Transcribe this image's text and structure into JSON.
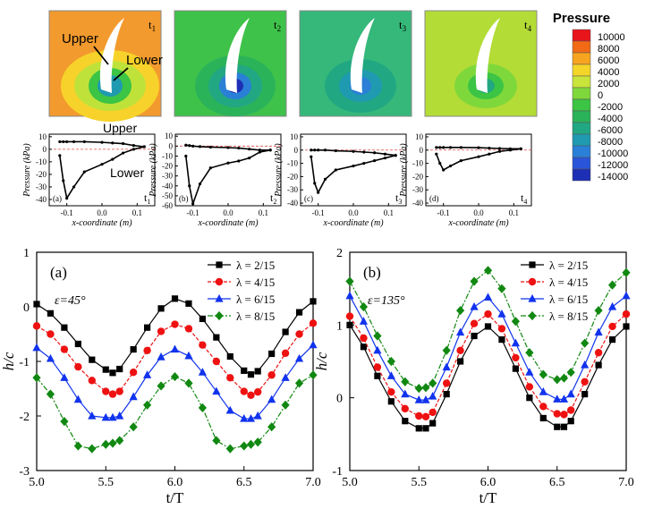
{
  "colorbar": {
    "title": "Pressure",
    "ticks": [
      "10000",
      "8000",
      "6000",
      "4000",
      "2000",
      "0",
      "-2000",
      "-4000",
      "-6000",
      "-8000",
      "-10000",
      "-12000",
      "-14000"
    ],
    "colors": [
      "#e8151b",
      "#f26a15",
      "#f7a520",
      "#f5d528",
      "#c9e43a",
      "#7fd83b",
      "#3cc444",
      "#2bb35a",
      "#22a783",
      "#1f9ab0",
      "#2a7fd6",
      "#2a55d8",
      "#1d2fb4"
    ]
  },
  "contours": [
    {
      "time_label": "t",
      "time_sub": "1",
      "bg": "#f29a2e",
      "annotations": [
        "Upper",
        "Lower"
      ]
    },
    {
      "time_label": "t",
      "time_sub": "2",
      "bg": "#3fc24a",
      "annotations": []
    },
    {
      "time_label": "t",
      "time_sub": "3",
      "bg": "#35b87a",
      "annotations": []
    },
    {
      "time_label": "t",
      "time_sub": "4",
      "bg": "#b3dc36",
      "annotations": []
    }
  ],
  "pressure_panels": [
    {
      "letter": "(a)",
      "time_label": "t",
      "time_sub": "1",
      "xlabel": "x-coordinate (m)",
      "ylabel": "Pressure (kPa)",
      "x_ticks": [
        "-0.1",
        "0.0",
        "0.1"
      ],
      "y_ticks": [
        "10",
        "0",
        "-10",
        "-20",
        "-30",
        "-40"
      ],
      "ylim": [
        -45,
        12
      ],
      "xlim": [
        -0.15,
        0.15
      ],
      "labels": [
        "Upper",
        "Lower"
      ],
      "chart_data": {
        "type": "scatter",
        "x": [
          -0.12,
          -0.11,
          -0.1,
          -0.08,
          -0.05,
          0,
          0.03,
          0.06,
          0.09,
          0.12
        ],
        "upper": [
          6,
          6,
          6,
          6,
          6,
          5.5,
          5,
          4.5,
          3,
          2
        ],
        "lower": [
          -5,
          -25,
          -39,
          -30,
          -18,
          -12,
          -8,
          -3,
          0,
          2
        ]
      }
    },
    {
      "letter": "(b)",
      "time_label": "t",
      "time_sub": "2",
      "xlabel": "x-coordinate (m)",
      "ylabel": "Pressure (kPa)",
      "x_ticks": [
        "-0.1",
        "0.0",
        "0.1"
      ],
      "y_ticks": [
        "10",
        "0",
        "-10",
        "-20",
        "-30",
        "-40",
        "-50",
        "-60"
      ],
      "ylim": [
        -60,
        12
      ],
      "xlim": [
        -0.15,
        0.15
      ],
      "labels": [],
      "chart_data": {
        "type": "scatter",
        "x": [
          -0.12,
          -0.11,
          -0.1,
          -0.08,
          -0.05,
          0,
          0.03,
          0.06,
          0.09,
          0.12
        ],
        "upper": [
          1,
          0.5,
          0,
          -0.5,
          -1,
          -1.5,
          -2,
          -3,
          -4,
          -4
        ],
        "lower": [
          -10,
          -40,
          -58,
          -38,
          -22,
          -17,
          -15,
          -12,
          -6,
          -4
        ]
      }
    },
    {
      "letter": "(c)",
      "time_label": "t",
      "time_sub": "3",
      "xlabel": "x-coordinate (m)",
      "ylabel": "Pressure (kPa)",
      "x_ticks": [
        "-0.1",
        "0.0",
        "0.1"
      ],
      "y_ticks": [
        "10",
        "0",
        "-10",
        "-20",
        "-30",
        "-40"
      ],
      "ylim": [
        -42,
        12
      ],
      "xlim": [
        -0.15,
        0.15
      ],
      "labels": [],
      "chart_data": {
        "type": "scatter",
        "x": [
          -0.12,
          -0.11,
          -0.1,
          -0.08,
          -0.05,
          0,
          0.03,
          0.06,
          0.09,
          0.12
        ],
        "upper": [
          0,
          0,
          0,
          0,
          -0.5,
          -1,
          -1.5,
          -2,
          -3,
          -4
        ],
        "lower": [
          -5,
          -25,
          -32,
          -22,
          -15,
          -12,
          -10,
          -8,
          -6,
          -4
        ]
      }
    },
    {
      "letter": "(d)",
      "time_label": "t",
      "time_sub": "4",
      "xlabel": "x-coordinate (m)",
      "ylabel": "Pressure (kPa)",
      "x_ticks": [
        "-0.1",
        "0.0",
        "0.1"
      ],
      "y_ticks": [
        "10",
        "0",
        "-10",
        "-20",
        "-30",
        "-40"
      ],
      "ylim": [
        -42,
        12
      ],
      "xlim": [
        -0.15,
        0.15
      ],
      "labels": [],
      "chart_data": {
        "type": "scatter",
        "x": [
          -0.12,
          -0.11,
          -0.1,
          -0.08,
          -0.05,
          0,
          0.03,
          0.06,
          0.09,
          0.12
        ],
        "upper": [
          2,
          2,
          2,
          2,
          2,
          1.8,
          1.5,
          1.2,
          1,
          1
        ],
        "lower": [
          -3,
          -10,
          -15,
          -12,
          -8,
          -5,
          -3,
          -1,
          0,
          1
        ]
      }
    }
  ],
  "hc_charts": [
    {
      "letter": "(a)",
      "annotation": "ε=45°",
      "xlabel": "t/T",
      "ylabel": "h/c",
      "x_ticks": [
        "5.0",
        "5.5",
        "6.0",
        "6.5",
        "7.0"
      ],
      "y_ticks": [
        "1",
        "0",
        "-1",
        "-2",
        "-3"
      ],
      "ylim": [
        -3,
        1
      ],
      "xlim": [
        5,
        7
      ],
      "legend": [
        "λ = 2/15",
        "λ = 4/15",
        "λ = 6/15",
        "λ = 8/15"
      ],
      "chart_data": {
        "type": "line",
        "x": [
          5.0,
          5.1,
          5.2,
          5.3,
          5.4,
          5.5,
          5.55,
          5.6,
          5.7,
          5.8,
          5.9,
          6.0,
          6.1,
          6.2,
          6.3,
          6.4,
          6.5,
          6.55,
          6.6,
          6.7,
          6.8,
          6.9,
          7.0
        ],
        "series": [
          {
            "name": "λ = 2/15",
            "values": [
              0.05,
              -0.12,
              -0.38,
              -0.68,
              -0.97,
              -1.15,
              -1.21,
              -1.14,
              -0.78,
              -0.38,
              -0.03,
              0.15,
              0.06,
              -0.22,
              -0.56,
              -0.91,
              -1.17,
              -1.24,
              -1.18,
              -0.86,
              -0.46,
              -0.1,
              0.1
            ]
          },
          {
            "name": "λ = 4/15",
            "values": [
              -0.35,
              -0.5,
              -0.78,
              -1.1,
              -1.35,
              -1.55,
              -1.6,
              -1.55,
              -1.2,
              -0.8,
              -0.45,
              -0.32,
              -0.4,
              -0.7,
              -1.0,
              -1.3,
              -1.55,
              -1.62,
              -1.56,
              -1.25,
              -0.85,
              -0.5,
              -0.3
            ]
          },
          {
            "name": "λ = 6/15",
            "values": [
              -0.75,
              -0.95,
              -1.3,
              -1.7,
              -2.0,
              -2.03,
              -2.03,
              -2.0,
              -1.65,
              -1.25,
              -0.92,
              -0.78,
              -0.9,
              -1.2,
              -1.55,
              -1.9,
              -2.05,
              -2.05,
              -2.0,
              -1.7,
              -1.3,
              -0.95,
              -0.7
            ]
          },
          {
            "name": "λ = 8/15",
            "values": [
              -1.3,
              -1.6,
              -2.1,
              -2.55,
              -2.6,
              -2.52,
              -2.5,
              -2.45,
              -2.2,
              -1.8,
              -1.45,
              -1.28,
              -1.4,
              -1.85,
              -2.45,
              -2.6,
              -2.55,
              -2.52,
              -2.48,
              -2.2,
              -1.8,
              -1.4,
              -1.25
            ]
          }
        ]
      }
    },
    {
      "letter": "(b)",
      "annotation": "ε=135°",
      "xlabel": "t/T",
      "ylabel": "h/c",
      "x_ticks": [
        "5.0",
        "5.5",
        "6.0",
        "6.5",
        "7.0"
      ],
      "y_ticks": [
        "2",
        "1",
        "0",
        "-1"
      ],
      "ylim": [
        -1,
        2
      ],
      "xlim": [
        5,
        7
      ],
      "legend": [
        "λ = 2/15",
        "λ = 4/15",
        "λ = 6/15",
        "λ = 8/15"
      ],
      "chart_data": {
        "type": "line",
        "x": [
          5.0,
          5.1,
          5.2,
          5.3,
          5.4,
          5.5,
          5.55,
          5.6,
          5.7,
          5.8,
          5.9,
          6.0,
          6.1,
          6.2,
          6.3,
          6.4,
          6.5,
          6.55,
          6.6,
          6.7,
          6.8,
          6.9,
          7.0
        ],
        "series": [
          {
            "name": "λ = 2/15",
            "values": [
              1.0,
              0.7,
              0.3,
              -0.05,
              -0.32,
              -0.42,
              -0.42,
              -0.35,
              0.05,
              0.5,
              0.85,
              0.98,
              0.8,
              0.4,
              0.0,
              -0.28,
              -0.4,
              -0.4,
              -0.32,
              0.05,
              0.45,
              0.8,
              0.98
            ]
          },
          {
            "name": "λ = 4/15",
            "values": [
              1.12,
              0.82,
              0.42,
              0.08,
              -0.15,
              -0.25,
              -0.26,
              -0.2,
              0.2,
              0.65,
              1.02,
              1.15,
              0.95,
              0.55,
              0.15,
              -0.12,
              -0.22,
              -0.23,
              -0.17,
              0.22,
              0.62,
              0.98,
              1.15
            ]
          },
          {
            "name": "λ = 6/15",
            "values": [
              1.4,
              1.05,
              0.65,
              0.3,
              0.05,
              -0.03,
              -0.03,
              0.02,
              0.42,
              0.9,
              1.25,
              1.38,
              1.15,
              0.75,
              0.35,
              0.08,
              -0.02,
              -0.02,
              0.05,
              0.45,
              0.9,
              1.25,
              1.4
            ]
          },
          {
            "name": "λ = 8/15",
            "values": [
              1.6,
              1.25,
              0.85,
              0.5,
              0.22,
              0.13,
              0.14,
              0.2,
              0.65,
              1.2,
              1.6,
              1.75,
              1.5,
              1.05,
              0.62,
              0.32,
              0.25,
              0.27,
              0.35,
              0.75,
              1.2,
              1.55,
              1.72
            ]
          }
        ]
      }
    }
  ]
}
